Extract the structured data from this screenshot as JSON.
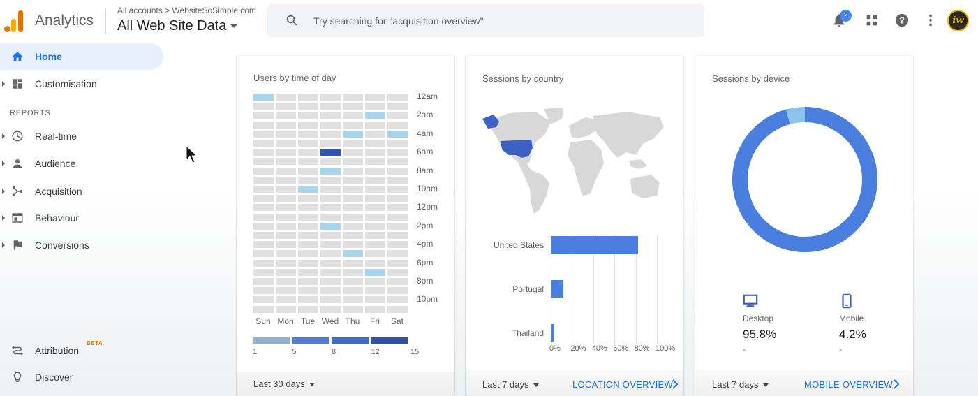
{
  "header": {
    "app_title": "Analytics",
    "breadcrumb": "All accounts > WebsiteSoSimple.com",
    "property": "All Web Site Data",
    "search_placeholder": "Try searching for \"acquisition overview\"",
    "notification_count": "2",
    "avatar_initials": "iw"
  },
  "sidebar": {
    "home": "Home",
    "customisation": "Customisation",
    "reports_label": "REPORTS",
    "realtime": "Real-time",
    "audience": "Audience",
    "acquisition": "Acquisition",
    "behaviour": "Behaviour",
    "conversions": "Conversions",
    "attribution": "Attribution",
    "beta": "BETA",
    "discover": "Discover"
  },
  "cards": {
    "time_of_day": {
      "title": "Users by time of day",
      "range": "Last 30 days",
      "days": [
        "Sun",
        "Mon",
        "Tue",
        "Wed",
        "Thu",
        "Fri",
        "Sat"
      ],
      "hour_labels": [
        "12am",
        "2am",
        "4am",
        "6am",
        "8am",
        "10am",
        "12pm",
        "2pm",
        "4pm",
        "6pm",
        "8pm",
        "10pm"
      ],
      "scale_labels": [
        "1",
        "5",
        "8",
        "12",
        "15"
      ],
      "scale_colors": [
        "#8fb3cc",
        "#4a7fd6",
        "#3c6cc9",
        "#2f4fa8"
      ],
      "colors": {
        "empty": "#e0e0e0",
        "light": "#a8d4ec",
        "dark": "#3155b5"
      },
      "highlighted_cells": [
        {
          "hour": 0,
          "day": 0,
          "level": "light"
        },
        {
          "hour": 2,
          "day": 5,
          "level": "light"
        },
        {
          "hour": 4,
          "day": 4,
          "level": "light"
        },
        {
          "hour": 4,
          "day": 6,
          "level": "light"
        },
        {
          "hour": 6,
          "day": 3,
          "level": "dark"
        },
        {
          "hour": 8,
          "day": 3,
          "level": "light"
        },
        {
          "hour": 10,
          "day": 2,
          "level": "light"
        },
        {
          "hour": 14,
          "day": 3,
          "level": "light"
        },
        {
          "hour": 17,
          "day": 4,
          "level": "light"
        },
        {
          "hour": 19,
          "day": 5,
          "level": "light"
        }
      ]
    },
    "country": {
      "title": "Sessions by country",
      "range": "Last 7 days",
      "link": "LOCATION OVERVIEW",
      "countries": [
        "United States",
        "Portugal",
        "Thailand"
      ],
      "percent": [
        82,
        12,
        3
      ],
      "axis_ticks": [
        "0%",
        "20%",
        "40%",
        "60%",
        "80%",
        "100%"
      ],
      "highlight_color": "#3c61c4"
    },
    "device": {
      "title": "Sessions by device",
      "range": "Last 7 days",
      "link": "MOBILE OVERVIEW",
      "devices": [
        {
          "name": "Desktop",
          "value": "95.8%",
          "percent": 95.8,
          "color": "#4a7fe0",
          "sub": "-"
        },
        {
          "name": "Mobile",
          "value": "4.2%",
          "percent": 4.2,
          "color": "#8cc4ee",
          "sub": "-"
        }
      ]
    }
  }
}
